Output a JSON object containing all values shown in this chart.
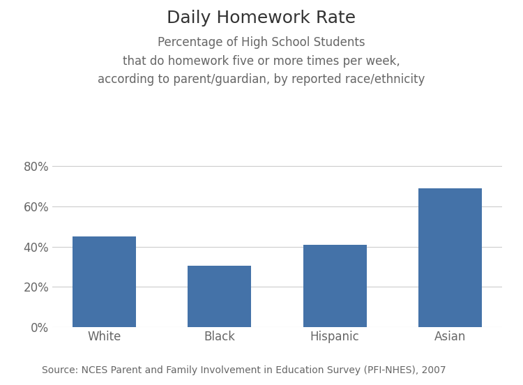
{
  "title": "Daily Homework Rate",
  "subtitle": "Percentage of High School Students\nthat do homework five or more times per week,\naccording to parent/guardian, by reported race/ethnicity",
  "categories": [
    "White",
    "Black",
    "Hispanic",
    "Asian"
  ],
  "values": [
    0.45,
    0.305,
    0.41,
    0.69
  ],
  "bar_color": "#4472a8",
  "ylim": [
    0,
    0.88
  ],
  "yticks": [
    0.0,
    0.2,
    0.4,
    0.6,
    0.8
  ],
  "source_text": "Source: NCES Parent and Family Involvement in Education Survey (PFI-NHES), 2007",
  "title_fontsize": 18,
  "subtitle_fontsize": 12,
  "tick_fontsize": 12,
  "source_fontsize": 10,
  "text_color": "#666666",
  "title_color": "#333333",
  "background_color": "#ffffff",
  "grid_color": "#cccccc"
}
